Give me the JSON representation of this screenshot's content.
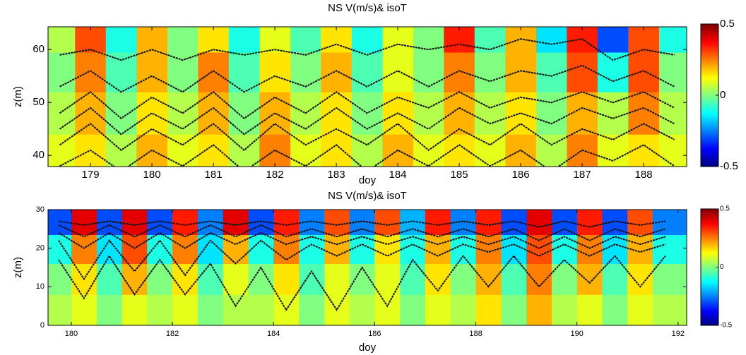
{
  "chart_data": [
    {
      "type": "heatmap",
      "title": "NS V(m/s)& isoT",
      "xlabel": "doy",
      "ylabel": "z(m)",
      "xlim": [
        178.31,
        188.7
      ],
      "ylim": [
        37.9,
        64.3
      ],
      "xticks": [
        179,
        180,
        181,
        182,
        183,
        184,
        185,
        186,
        187,
        188
      ],
      "yticks": [
        40,
        50,
        60
      ],
      "clim": [
        -0.5,
        0.5
      ],
      "cticks": [
        -0.5,
        0,
        0.5
      ],
      "colormap": "jet",
      "x": [
        178.5,
        179,
        179.5,
        180,
        180.5,
        181,
        181.5,
        182,
        182.5,
        183,
        183.5,
        184,
        184.5,
        185,
        185.5,
        186,
        186.5,
        187,
        187.5,
        188,
        188.5
      ],
      "y": [
        40,
        48,
        56,
        63
      ],
      "z": [
        [
          0.1,
          0.15,
          0.05,
          0.2,
          0.1,
          0.15,
          0.05,
          0.25,
          0.1,
          0.15,
          0.05,
          0.2,
          0.1,
          0.15,
          0.1,
          0.2,
          0.05,
          0.25,
          0.1,
          0.15,
          0.1
        ],
        [
          0.05,
          0.2,
          0,
          0.15,
          0.05,
          0.2,
          0,
          0.2,
          0.05,
          0.15,
          0,
          0.15,
          0.05,
          0.2,
          0.05,
          0.15,
          0,
          0.2,
          0.05,
          0.25,
          0.05
        ],
        [
          0,
          0.25,
          -0.05,
          0.2,
          0,
          0.25,
          -0.05,
          0.15,
          0,
          0.2,
          -0.05,
          0.1,
          0,
          0.25,
          0,
          0.2,
          -0.05,
          0.3,
          -0.1,
          0.3,
          0
        ],
        [
          0.05,
          0.3,
          -0.1,
          0.2,
          0,
          0.15,
          -0.1,
          0.1,
          -0.05,
          0.15,
          -0.1,
          0.1,
          0,
          0.35,
          -0.05,
          0.2,
          -0.15,
          0.35,
          -0.3,
          0.3,
          -0.1
        ]
      ],
      "contour_color": "#111111",
      "contours": [
        {
          "values": [
            38,
            41,
            37,
            41,
            38,
            42,
            37,
            41,
            38,
            42,
            37,
            41,
            38,
            42,
            38,
            41,
            37,
            41,
            39,
            42,
            38
          ]
        },
        {
          "values": [
            42,
            46,
            41,
            45,
            42,
            46,
            41,
            46,
            42,
            45,
            42,
            46,
            41,
            45,
            42,
            46,
            42,
            45,
            43,
            46,
            43
          ]
        },
        {
          "values": [
            45,
            49,
            44,
            48,
            45,
            49,
            44,
            48,
            45,
            49,
            45,
            48,
            45,
            49,
            46,
            48,
            46,
            49,
            47,
            49,
            46
          ]
        },
        {
          "values": [
            48,
            52,
            47,
            51,
            48,
            52,
            47,
            51,
            48,
            52,
            48,
            51,
            49,
            52,
            49,
            51,
            50,
            52,
            50,
            52,
            49
          ]
        },
        {
          "values": [
            53,
            56,
            52,
            55,
            52,
            56,
            52,
            55,
            53,
            56,
            53,
            56,
            53,
            56,
            54,
            56,
            55,
            57,
            54,
            56,
            53
          ]
        },
        {
          "values": [
            59,
            60,
            58,
            60,
            58,
            60,
            59,
            60,
            59,
            61,
            59,
            61,
            60,
            61,
            60,
            62,
            61,
            62,
            58,
            60,
            59
          ]
        }
      ]
    },
    {
      "type": "heatmap",
      "title": "NS V(m/s)& isoT",
      "xlabel": "doy",
      "ylabel": "z(m)",
      "xlim": [
        179.54,
        192.17
      ],
      "ylim": [
        0,
        30
      ],
      "xticks": [
        180,
        182,
        184,
        186,
        188,
        190,
        192
      ],
      "yticks": [
        0,
        10,
        20,
        30
      ],
      "clim": [
        -0.5,
        0.5
      ],
      "cticks": [
        -0.5,
        0,
        0.5
      ],
      "colormap": "jet",
      "x": [
        179.75,
        180.25,
        180.75,
        181.25,
        181.75,
        182.25,
        182.75,
        183.25,
        183.75,
        184.25,
        184.75,
        185.25,
        185.75,
        186.25,
        186.75,
        187.25,
        187.75,
        188.25,
        188.75,
        189.25,
        189.75,
        190.25,
        190.75,
        191.25,
        191.75
      ],
      "y": [
        4,
        12,
        20,
        27
      ],
      "z": [
        [
          0.05,
          0.1,
          0,
          0.1,
          0.05,
          0.1,
          0,
          0.05,
          0.05,
          0.1,
          0,
          0.1,
          0.05,
          0.1,
          0,
          0.1,
          0.05,
          0.15,
          0,
          0.2,
          0.05,
          0.1,
          0,
          0.1,
          0.05
        ],
        [
          0,
          0.15,
          -0.05,
          0.2,
          0,
          0.15,
          -0.05,
          0.1,
          0,
          0.15,
          -0.05,
          0.1,
          0,
          0.1,
          -0.05,
          0.15,
          0,
          0.2,
          -0.05,
          0.25,
          0,
          0.2,
          -0.05,
          0.15,
          0
        ],
        [
          -0.1,
          0.25,
          -0.15,
          0.3,
          -0.1,
          0.25,
          -0.15,
          0.2,
          -0.1,
          0.25,
          -0.1,
          0.2,
          -0.1,
          0.15,
          -0.1,
          0.2,
          -0.1,
          0.25,
          -0.15,
          0.3,
          -0.1,
          0.25,
          -0.15,
          0.2,
          -0.1
        ],
        [
          -0.3,
          0.4,
          -0.3,
          0.4,
          -0.3,
          0.35,
          -0.25,
          0.4,
          -0.3,
          0.35,
          -0.25,
          0.3,
          -0.25,
          0.3,
          -0.2,
          0.35,
          -0.25,
          0.35,
          -0.3,
          0.4,
          -0.3,
          0.35,
          -0.3,
          0.3,
          -0.25
        ]
      ],
      "contour_color": "#111111",
      "contours": [
        {
          "values": [
            27,
            26,
            27,
            26,
            27,
            26,
            27,
            26,
            27,
            26,
            27,
            26,
            27,
            26,
            27,
            26,
            27,
            26,
            27,
            25.5,
            27,
            25.5,
            27,
            26,
            27
          ]
        },
        {
          "values": [
            26,
            23,
            26,
            23,
            26,
            23,
            26,
            23,
            26,
            23,
            25,
            23,
            25,
            23,
            25,
            23,
            25,
            23,
            25,
            22,
            25,
            22,
            25,
            23,
            25
          ]
        },
        {
          "values": [
            24,
            20,
            24,
            20,
            24,
            20,
            24,
            21,
            24,
            21,
            23,
            21,
            23,
            21,
            23,
            21,
            23,
            21,
            23,
            20,
            23,
            20,
            23,
            21,
            23
          ]
        },
        {
          "values": [
            22,
            12,
            22,
            14,
            22,
            13,
            22,
            16,
            22,
            17,
            21,
            18,
            21,
            18,
            21,
            18,
            21,
            19,
            21,
            18,
            21,
            18,
            21,
            19,
            21
          ]
        },
        {
          "values": [
            17,
            7,
            18,
            8,
            17,
            8,
            16,
            5,
            15,
            4,
            14,
            4,
            15,
            5,
            17,
            9,
            18,
            10,
            18,
            10,
            17,
            11,
            18,
            10,
            18
          ]
        }
      ]
    }
  ]
}
